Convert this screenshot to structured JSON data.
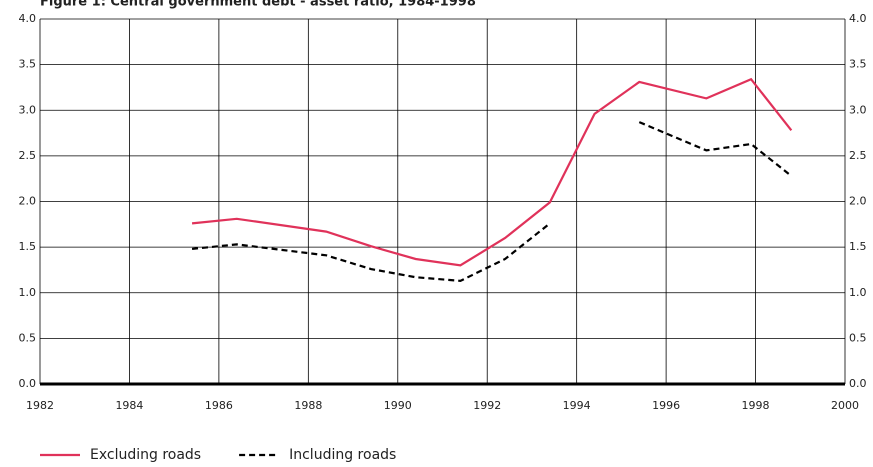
{
  "chart_data": {
    "type": "line",
    "title": "Figure 1: Central government debt - asset ratio, 1984-1998",
    "x": [
      1985.4,
      1986.4,
      1988.4,
      1989.4,
      1990.4,
      1991.4,
      1992.4,
      1993.4,
      1994.4,
      1995.4,
      1996.9,
      1997.9,
      1998.8
    ],
    "series": [
      {
        "name": "Excluding roads",
        "color": "#e0325a",
        "dash": false,
        "values": [
          1.76,
          1.81,
          1.67,
          1.51,
          1.37,
          1.3,
          1.6,
          1.99,
          2.96,
          3.31,
          3.13,
          3.34,
          2.78
        ]
      },
      {
        "name": "Including roads",
        "color": "#000000",
        "dash": true,
        "values": [
          1.48,
          1.53,
          1.41,
          1.26,
          1.17,
          1.13,
          1.37,
          1.76,
          null,
          2.87,
          2.56,
          2.63,
          2.28
        ]
      }
    ],
    "xlim": [
      1982,
      2000
    ],
    "xticks": [
      1982,
      1984,
      1986,
      1988,
      1990,
      1992,
      1994,
      1996,
      1998,
      2000
    ],
    "ylim": [
      0,
      4
    ],
    "yticks": [
      {
        "value": 0,
        "label": "0.0"
      },
      {
        "value": 0.5,
        "label": "0.5"
      },
      {
        "value": 1,
        "label": "1.0"
      },
      {
        "value": 1.5,
        "label": "1.5"
      },
      {
        "value": 2,
        "label": "2.0"
      },
      {
        "value": 2.5,
        "label": "2.5"
      },
      {
        "value": 3,
        "label": "3.0"
      },
      {
        "value": 3.5,
        "label": "3.5"
      },
      {
        "value": 4,
        "label": "4.0"
      }
    ],
    "grid": true,
    "legend": "bottom"
  }
}
